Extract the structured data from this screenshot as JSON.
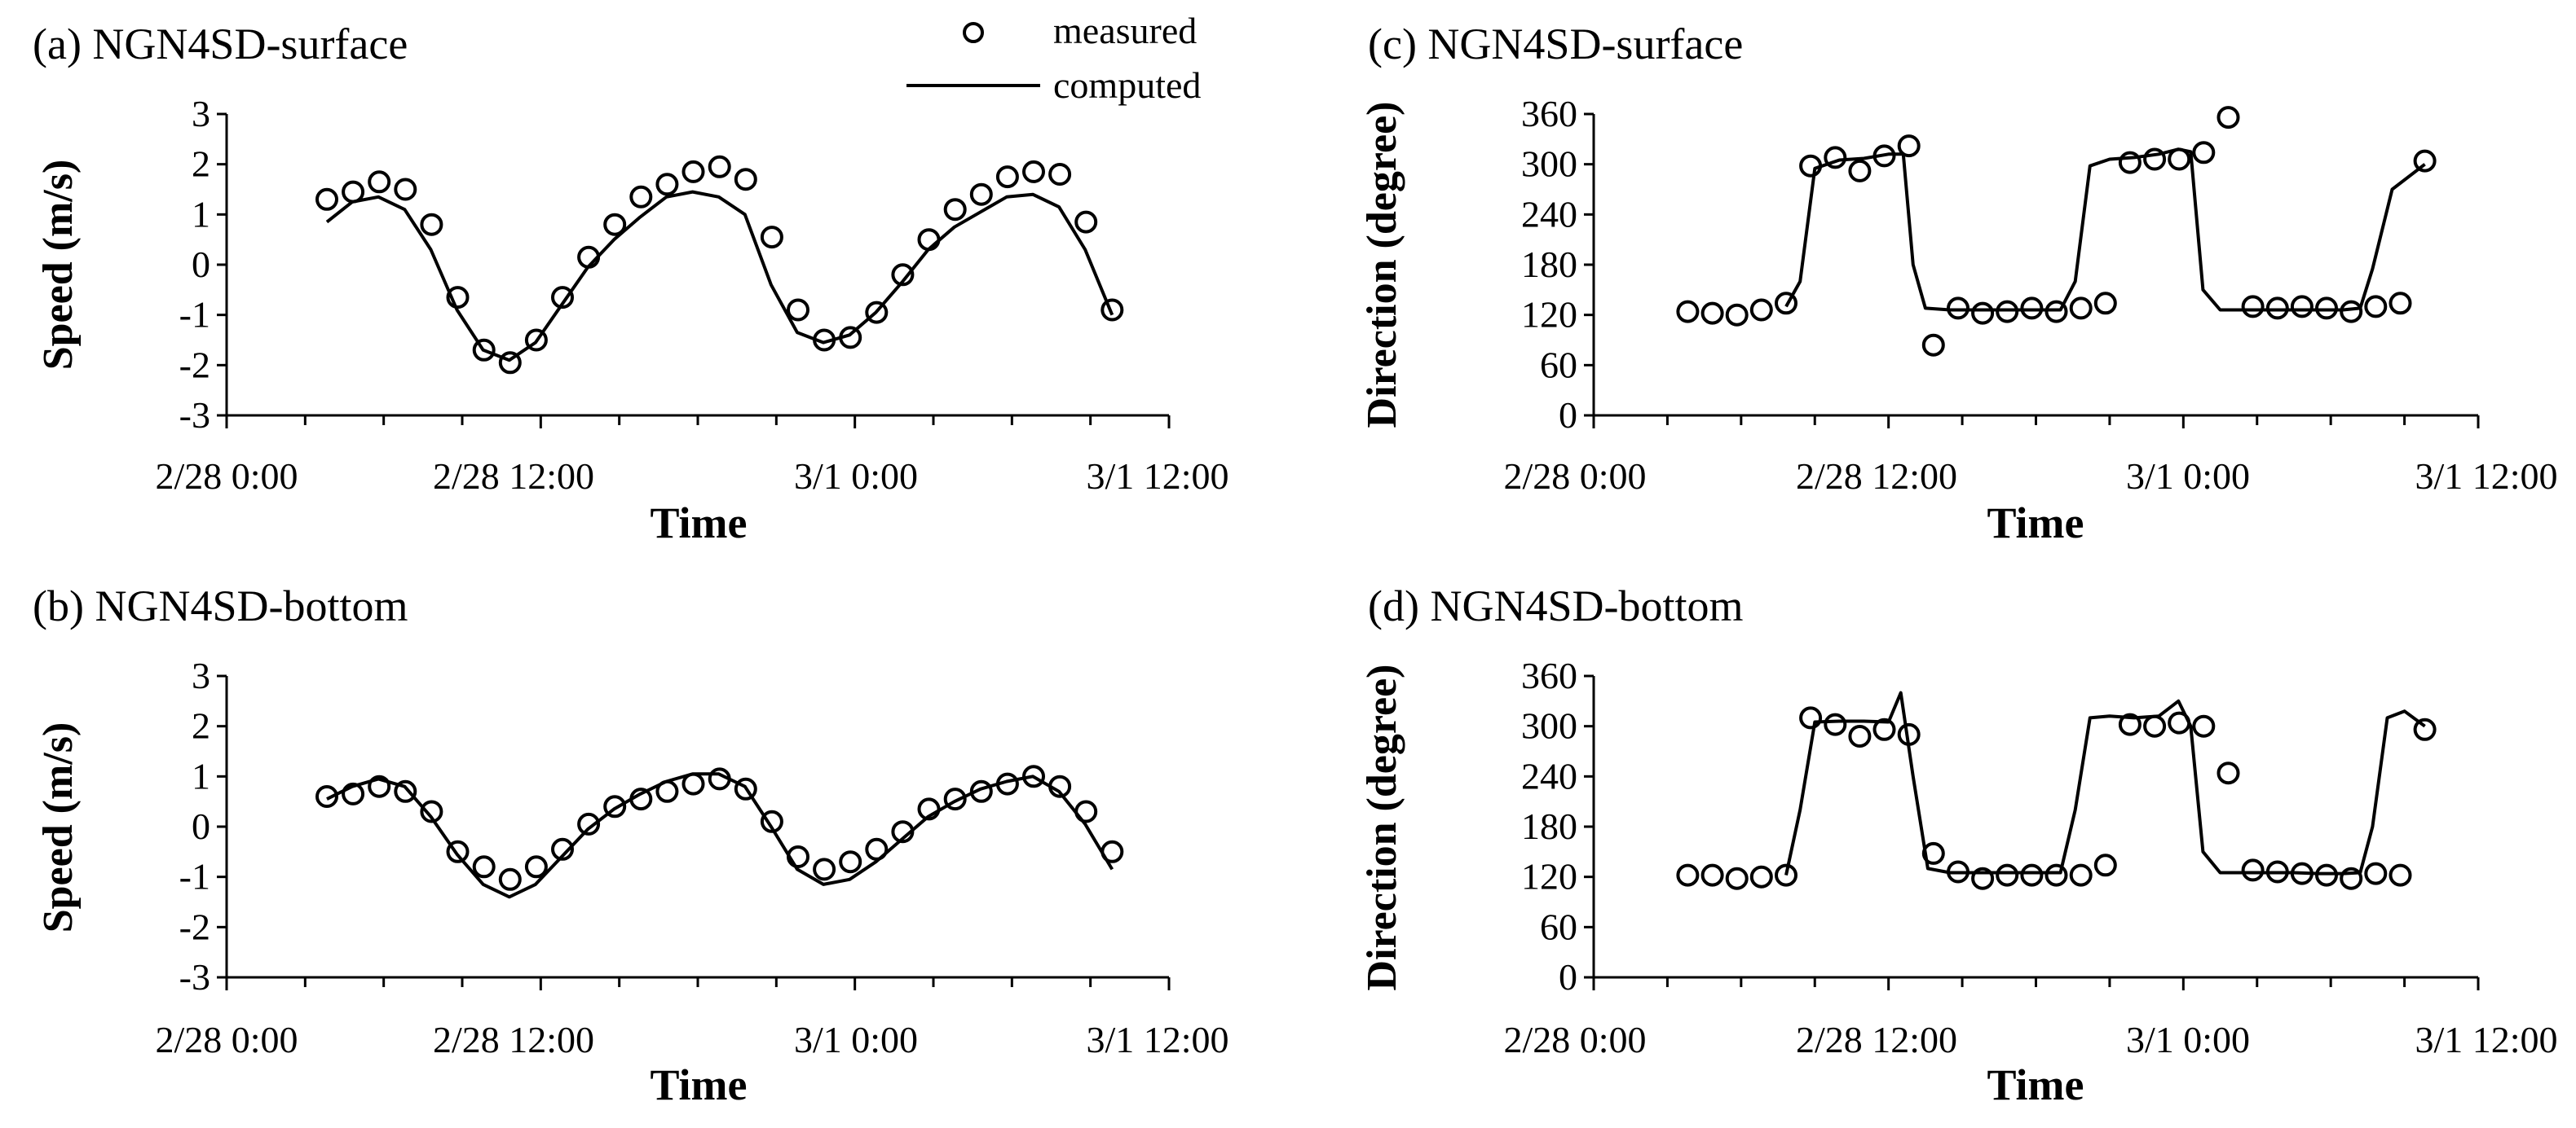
{
  "legend": {
    "measured": "measured",
    "computed": "computed"
  },
  "time_ticks": [
    "2/28 0:00",
    "2/28 12:00",
    "3/1 0:00",
    "3/1 12:00"
  ],
  "chart_data": [
    {
      "id": "a",
      "type": "line+scatter",
      "title": "(a) NGN4SD-surface",
      "xlabel": "Time",
      "ylabel": "Speed (m/s)",
      "xlim_hours": [
        0,
        36
      ],
      "ylim": [
        -3,
        3
      ],
      "yticks": [
        3,
        2,
        1,
        0,
        -1,
        -2,
        -3
      ],
      "measured": {
        "x_hours": [
          3.83,
          4.83,
          5.83,
          6.83,
          7.83,
          8.83,
          9.83,
          10.83,
          11.83,
          12.83,
          13.83,
          14.83,
          15.83,
          16.83,
          17.83,
          18.83,
          19.83,
          20.83,
          21.83,
          22.83,
          23.83,
          24.83,
          25.83,
          26.83,
          27.83,
          28.83,
          29.83,
          30.83,
          31.83,
          32.83,
          33.83
        ],
        "y": [
          1.3,
          1.45,
          1.65,
          1.5,
          0.8,
          -0.65,
          -1.7,
          -1.95,
          -1.5,
          -0.65,
          0.15,
          0.8,
          1.35,
          1.6,
          1.85,
          1.95,
          1.7,
          0.55,
          -0.9,
          -1.5,
          -1.45,
          -0.95,
          -0.2,
          0.5,
          1.1,
          1.4,
          1.75,
          1.85,
          1.8,
          0.85,
          -0.9
        ]
      },
      "computed": {
        "x_hours": [
          3.83,
          4.8,
          5.8,
          6.8,
          7.8,
          8.8,
          9.8,
          10.8,
          11.8,
          12.8,
          13.8,
          14.8,
          15.8,
          16.8,
          17.8,
          18.8,
          19.8,
          20.8,
          21.8,
          22.8,
          23.8,
          24.8,
          25.8,
          26.8,
          27.8,
          28.8,
          29.8,
          30.8,
          31.8,
          32.8,
          33.83
        ],
        "y": [
          0.85,
          1.25,
          1.35,
          1.1,
          0.3,
          -0.9,
          -1.7,
          -1.9,
          -1.55,
          -0.8,
          -0.05,
          0.5,
          0.95,
          1.35,
          1.45,
          1.35,
          1.0,
          -0.4,
          -1.35,
          -1.55,
          -1.4,
          -0.95,
          -0.35,
          0.3,
          0.75,
          1.05,
          1.35,
          1.4,
          1.15,
          0.3,
          -1.0
        ]
      }
    },
    {
      "id": "b",
      "type": "line+scatter",
      "title": "(b) NGN4SD-bottom",
      "xlabel": "Time",
      "ylabel": "Speed (m/s)",
      "xlim_hours": [
        0,
        36
      ],
      "ylim": [
        -3,
        3
      ],
      "yticks": [
        3,
        2,
        1,
        0,
        -1,
        -2,
        -3
      ],
      "measured": {
        "x_hours": [
          3.83,
          4.83,
          5.83,
          6.83,
          7.83,
          8.83,
          9.83,
          10.83,
          11.83,
          12.83,
          13.83,
          14.83,
          15.83,
          16.83,
          17.83,
          18.83,
          19.83,
          20.83,
          21.83,
          22.83,
          23.83,
          24.83,
          25.83,
          26.83,
          27.83,
          28.83,
          29.83,
          30.83,
          31.83,
          32.83,
          33.83
        ],
        "y": [
          0.6,
          0.65,
          0.8,
          0.7,
          0.3,
          -0.5,
          -0.8,
          -1.05,
          -0.8,
          -0.45,
          0.05,
          0.4,
          0.55,
          0.7,
          0.85,
          0.95,
          0.75,
          0.1,
          -0.6,
          -0.85,
          -0.7,
          -0.45,
          -0.1,
          0.35,
          0.55,
          0.7,
          0.85,
          1.0,
          0.8,
          0.3,
          -0.5
        ]
      },
      "computed": {
        "x_hours": [
          3.83,
          4.8,
          5.8,
          6.8,
          7.8,
          8.8,
          9.8,
          10.8,
          11.8,
          12.8,
          13.8,
          14.8,
          15.8,
          16.8,
          17.8,
          18.8,
          19.8,
          20.8,
          21.8,
          22.8,
          23.8,
          24.8,
          25.8,
          26.8,
          27.8,
          28.8,
          29.8,
          30.8,
          31.8,
          32.8,
          33.83
        ],
        "y": [
          0.55,
          0.8,
          0.95,
          0.8,
          0.2,
          -0.55,
          -1.15,
          -1.4,
          -1.15,
          -0.6,
          -0.05,
          0.35,
          0.65,
          0.9,
          1.05,
          1.05,
          0.8,
          0.0,
          -0.85,
          -1.15,
          -1.05,
          -0.7,
          -0.25,
          0.2,
          0.5,
          0.75,
          0.9,
          1.0,
          0.7,
          0.05,
          -0.85
        ]
      }
    },
    {
      "id": "c",
      "type": "line+scatter",
      "title": "(c) NGN4SD-surface",
      "xlabel": "Time",
      "ylabel": "Direction (degree)",
      "xlim_hours": [
        0,
        36
      ],
      "ylim": [
        0,
        360
      ],
      "yticks": [
        360,
        300,
        240,
        180,
        120,
        60,
        0
      ],
      "measured": {
        "x_hours": [
          3.83,
          4.83,
          5.83,
          6.83,
          7.83,
          8.83,
          9.83,
          10.83,
          11.83,
          12.83,
          13.83,
          14.83,
          15.83,
          16.83,
          17.83,
          18.83,
          19.83,
          20.83,
          21.83,
          22.83,
          23.83,
          24.83,
          25.83,
          26.83,
          27.83,
          28.83,
          29.83,
          30.83,
          31.83,
          32.83,
          33.83
        ],
        "y": [
          124,
          122,
          120,
          126,
          134,
          298,
          308,
          292,
          310,
          322,
          84,
          128,
          122,
          124,
          128,
          124,
          128,
          134,
          302,
          306,
          306,
          314,
          356,
          130,
          128,
          130,
          128,
          124,
          130,
          134,
          304
        ]
      },
      "computed": {
        "x_hours": [
          7.83,
          8.4,
          9.0,
          10.0,
          11.0,
          12.0,
          12.6,
          13.0,
          13.5,
          14.5,
          15.5,
          16.5,
          17.5,
          18.5,
          19.0,
          19.6,
          20.2,
          21.0,
          22.0,
          23.0,
          23.8,
          24.3,
          24.8,
          25.5,
          26.5,
          27.5,
          28.5,
          29.5,
          30.5,
          31.2,
          31.7,
          32.5,
          33.83
        ],
        "y": [
          130,
          160,
          295,
          305,
          307,
          312,
          312,
          180,
          128,
          126,
          126,
          126,
          126,
          126,
          126,
          160,
          298,
          306,
          308,
          312,
          318,
          315,
          150,
          126,
          126,
          126,
          126,
          126,
          126,
          128,
          175,
          270,
          300
        ]
      }
    },
    {
      "id": "d",
      "type": "line+scatter",
      "title": "(d) NGN4SD-bottom",
      "xlabel": "Time",
      "ylabel": "Direction (degree)",
      "xlim_hours": [
        0,
        36
      ],
      "ylim": [
        0,
        360
      ],
      "yticks": [
        360,
        300,
        240,
        180,
        120,
        60,
        0
      ],
      "measured": {
        "x_hours": [
          3.83,
          4.83,
          5.83,
          6.83,
          7.83,
          8.83,
          9.83,
          10.83,
          11.83,
          12.83,
          13.83,
          14.83,
          15.83,
          16.83,
          17.83,
          18.83,
          19.83,
          20.83,
          21.83,
          22.83,
          23.83,
          24.83,
          25.83,
          26.83,
          27.83,
          28.83,
          29.83,
          30.83,
          31.83,
          32.83,
          33.83
        ],
        "y": [
          122,
          122,
          118,
          120,
          122,
          310,
          302,
          288,
          296,
          290,
          148,
          126,
          118,
          122,
          122,
          122,
          122,
          134,
          302,
          300,
          304,
          300,
          244,
          128,
          126,
          124,
          122,
          118,
          124,
          122,
          296
        ]
      },
      "computed": {
        "x_hours": [
          7.83,
          8.4,
          9.0,
          10.0,
          11.0,
          12.0,
          12.5,
          13.0,
          13.6,
          14.5,
          15.5,
          16.5,
          17.5,
          18.5,
          19.0,
          19.6,
          20.2,
          21.0,
          22.0,
          23.0,
          23.8,
          24.3,
          24.8,
          25.5,
          26.5,
          27.5,
          28.5,
          29.5,
          30.5,
          31.2,
          31.7,
          32.3,
          33.0,
          33.83
        ],
        "y": [
          122,
          200,
          305,
          306,
          306,
          305,
          340,
          240,
          130,
          125,
          125,
          125,
          125,
          125,
          125,
          200,
          310,
          312,
          310,
          312,
          330,
          300,
          150,
          125,
          125,
          125,
          125,
          124,
          124,
          125,
          180,
          310,
          318,
          300
        ]
      }
    }
  ]
}
